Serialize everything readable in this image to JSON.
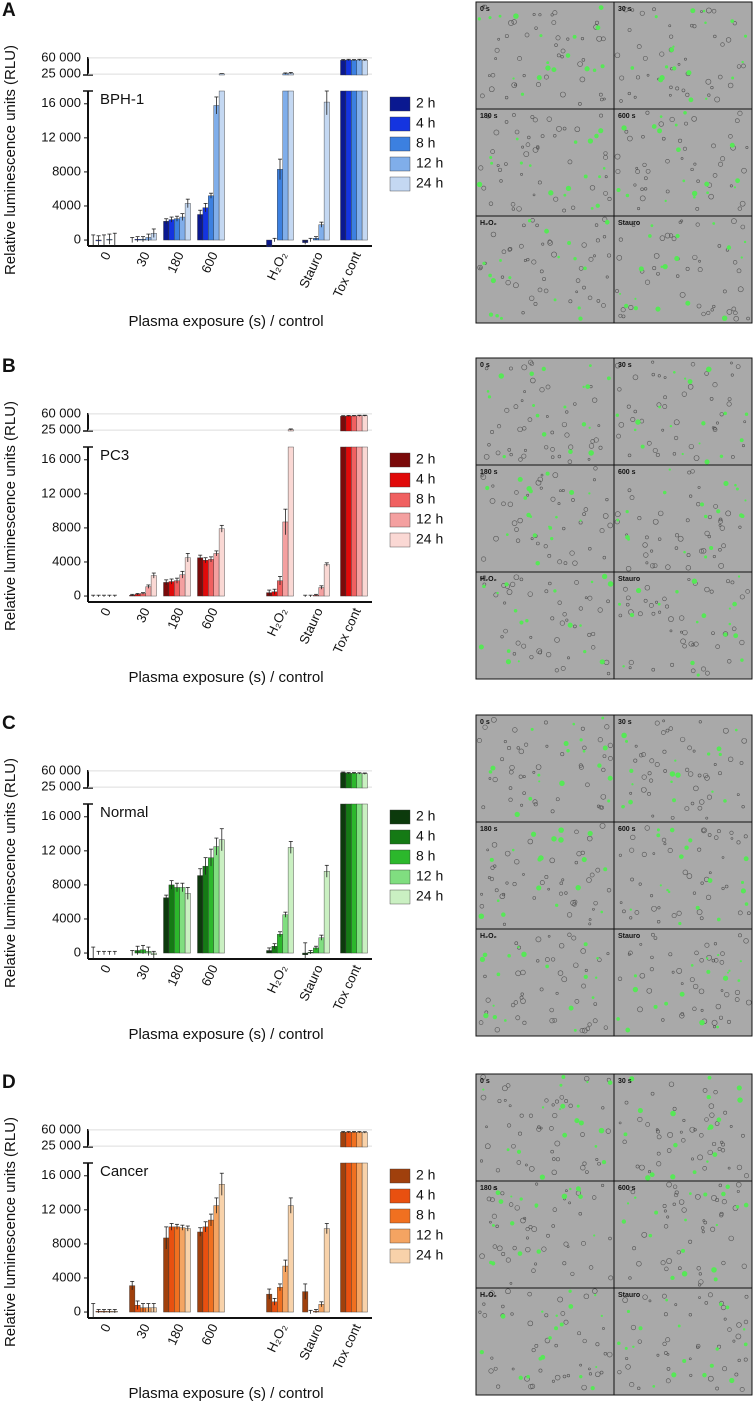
{
  "chart_data": [
    {
      "type": "bar",
      "panel": "A",
      "label": "BPH-1",
      "label_color": "#1a22d8",
      "ylabel": "Relative luminescence units (RLU)",
      "xlabel": "Plasma exposure (s) / control",
      "categories": [
        "0",
        "30",
        "180",
        "600",
        "H₂O₂",
        "Stauro",
        "Tox cont"
      ],
      "ylim": [
        -700,
        17500
      ],
      "yticks": [
        0,
        4000,
        8000,
        {
          "value": 12000,
          "label": "12 000"
        },
        {
          "value": 16000,
          "label": "16 000"
        }
      ],
      "y_break": {
        "ylim": [
          23000,
          62000
        ],
        "yticks": [
          {
            "value": 25000,
            "label": "25 000"
          },
          {
            "value": 60000,
            "label": "60 000"
          }
        ]
      },
      "series": [
        {
          "name": "2 h",
          "color": "#0a1890",
          "values": [
            0,
            0,
            2200,
            3000,
            -800,
            -300,
            55000
          ],
          "errors": [
            600,
            300,
            300,
            500,
            200,
            200,
            1500
          ]
        },
        {
          "name": "4 h",
          "color": "#1434e0",
          "values": [
            -100,
            100,
            2400,
            3800,
            0,
            0,
            55500
          ],
          "errors": [
            600,
            300,
            300,
            500,
            200,
            200,
            1500
          ]
        },
        {
          "name": "8 h",
          "color": "#3c80e0",
          "values": [
            0,
            100,
            2500,
            5200,
            8300,
            200,
            55000
          ],
          "errors": [
            600,
            300,
            300,
            300,
            1200,
            200,
            1500
          ]
        },
        {
          "name": "12 h",
          "color": "#80aeea",
          "values": [
            100,
            300,
            2700,
            15800,
            26000,
            1800,
            55500
          ],
          "errors": [
            600,
            400,
            400,
            1000,
            1500,
            300,
            1500
          ]
        },
        {
          "name": "24 h",
          "color": "#c4d8f2",
          "values": [
            0,
            800,
            4300,
            25500,
            27000,
            16200,
            55000
          ],
          "errors": [
            800,
            500,
            500,
            500,
            1500,
            1500,
            1500
          ]
        }
      ],
      "images": [
        "0 s",
        "30 s",
        "180 s",
        "600 s",
        "H₂O₂",
        "Stauro"
      ]
    },
    {
      "type": "bar",
      "panel": "B",
      "label": "PC3",
      "label_color": "#e01010",
      "ylabel": "Relative luminescence units (RLU)",
      "xlabel": "Plasma exposure (s) / control",
      "categories": [
        "0",
        "30",
        "180",
        "600",
        "H₂O₂",
        "Stauro",
        "Tox cont"
      ],
      "ylim": [
        -700,
        17500
      ],
      "yticks": [
        0,
        4000,
        8000,
        {
          "value": 12000,
          "label": "12 000"
        },
        {
          "value": 16000,
          "label": "16 000"
        }
      ],
      "y_break": {
        "ylim": [
          23000,
          62000
        ],
        "yticks": [
          {
            "value": 25000,
            "label": "25 000"
          },
          {
            "value": 60000,
            "label": "60 000"
          }
        ]
      },
      "series": [
        {
          "name": "2 h",
          "color": "#7a0a0a",
          "values": [
            0,
            100,
            1600,
            4500,
            400,
            0,
            55000
          ],
          "errors": [
            100,
            100,
            300,
            300,
            300,
            100,
            1200
          ]
        },
        {
          "name": "4 h",
          "color": "#e00a0a",
          "values": [
            0,
            200,
            1700,
            4200,
            500,
            0,
            55500
          ],
          "errors": [
            100,
            100,
            300,
            300,
            300,
            100,
            1200
          ]
        },
        {
          "name": "8 h",
          "color": "#f06060",
          "values": [
            0,
            300,
            1800,
            4300,
            1800,
            100,
            55500
          ],
          "errors": [
            100,
            100,
            300,
            300,
            500,
            100,
            1200
          ]
        },
        {
          "name": "12 h",
          "color": "#f4a0a0",
          "values": [
            0,
            1100,
            2500,
            5000,
            8700,
            1000,
            56000
          ],
          "errors": [
            100,
            200,
            400,
            300,
            1500,
            200,
            1200
          ]
        },
        {
          "name": "24 h",
          "color": "#fad8d4",
          "values": [
            0,
            2400,
            4500,
            7900,
            26000,
            3700,
            56000
          ],
          "errors": [
            100,
            300,
            500,
            400,
            1500,
            200,
            1200
          ]
        }
      ],
      "images": [
        "0 s",
        "30 s",
        "180 s",
        "600 s",
        "H₂O₂",
        "Stauro"
      ]
    },
    {
      "type": "bar",
      "panel": "C",
      "label": "Normal",
      "label_color": "#1a8a1a",
      "ylabel": "Relative luminescence units (RLU)",
      "xlabel": "Plasma exposure (s) / control",
      "categories": [
        "0",
        "30",
        "180",
        "600",
        "H₂O₂",
        "Stauro",
        "Tox cont"
      ],
      "ylim": [
        -700,
        17500
      ],
      "yticks": [
        0,
        4000,
        8000,
        {
          "value": 12000,
          "label": "12 000"
        },
        {
          "value": 16000,
          "label": "16 000"
        }
      ],
      "y_break": {
        "ylim": [
          23000,
          62000
        ],
        "yticks": [
          {
            "value": 25000,
            "label": "25 000"
          },
          {
            "value": 60000,
            "label": "60 000"
          }
        ]
      },
      "series": [
        {
          "name": "2 h",
          "color": "#0c3a0c",
          "values": [
            0,
            0,
            6500,
            9100,
            300,
            -200,
            56000
          ],
          "errors": [
            700,
            300,
            300,
            800,
            300,
            1400,
            1500
          ]
        },
        {
          "name": "4 h",
          "color": "#157a15",
          "values": [
            0,
            300,
            8000,
            10200,
            800,
            100,
            55000
          ],
          "errors": [
            200,
            500,
            500,
            1000,
            300,
            200,
            1500
          ]
        },
        {
          "name": "8 h",
          "color": "#2cb82c",
          "values": [
            0,
            400,
            7700,
            11200,
            2200,
            600,
            55000
          ],
          "errors": [
            200,
            500,
            500,
            1000,
            300,
            200,
            1500
          ]
        },
        {
          "name": "12 h",
          "color": "#80de80",
          "values": [
            0,
            200,
            7700,
            12500,
            4500,
            1800,
            54500
          ],
          "errors": [
            200,
            500,
            500,
            1000,
            300,
            300,
            1500
          ]
        },
        {
          "name": "24 h",
          "color": "#caf0c2",
          "values": [
            0,
            -200,
            7000,
            13300,
            12400,
            9600,
            54000
          ],
          "errors": [
            200,
            400,
            700,
            1300,
            700,
            700,
            1500
          ]
        }
      ],
      "images": [
        "0 s",
        "30 s",
        "180 s",
        "600 s",
        "H₂O₂",
        "Stauro"
      ]
    },
    {
      "type": "bar",
      "panel": "D",
      "label": "Cancer",
      "label_color": "#e85a10",
      "ylabel": "Relative luminescence units (RLU)",
      "xlabel": "Plasma exposure (s) / control",
      "categories": [
        "0",
        "30",
        "180",
        "600",
        "H₂O₂",
        "Stauro",
        "Tox cont"
      ],
      "ylim": [
        -700,
        17500
      ],
      "yticks": [
        0,
        4000,
        8000,
        {
          "value": 12000,
          "label": "12 000"
        },
        {
          "value": 16000,
          "label": "16 000"
        }
      ],
      "y_break": {
        "ylim": [
          23000,
          62000
        ],
        "yticks": [
          {
            "value": 25000,
            "label": "25 000"
          },
          {
            "value": 60000,
            "label": "60 000"
          }
        ]
      },
      "series": [
        {
          "name": "2 h",
          "color": "#a0400c",
          "values": [
            0,
            3100,
            8700,
            9400,
            2100,
            2400,
            55000
          ],
          "errors": [
            1000,
            500,
            1300,
            500,
            600,
            900,
            1500
          ]
        },
        {
          "name": "4 h",
          "color": "#e85010",
          "values": [
            100,
            800,
            10000,
            10000,
            1200,
            0,
            55000
          ],
          "errors": [
            200,
            500,
            400,
            600,
            400,
            200,
            1500
          ]
        },
        {
          "name": "8 h",
          "color": "#f07020",
          "values": [
            100,
            500,
            10000,
            10800,
            2900,
            100,
            55000
          ],
          "errors": [
            200,
            500,
            300,
            700,
            400,
            200,
            1500
          ]
        },
        {
          "name": "12 h",
          "color": "#f4a462",
          "values": [
            100,
            500,
            9900,
            12500,
            5400,
            900,
            55000
          ],
          "errors": [
            200,
            500,
            300,
            900,
            700,
            300,
            1500
          ]
        },
        {
          "name": "24 h",
          "color": "#f8d2aa",
          "values": [
            100,
            500,
            9800,
            15000,
            12500,
            9800,
            54500
          ],
          "errors": [
            200,
            500,
            300,
            1300,
            900,
            600,
            1500
          ]
        }
      ],
      "images": [
        "0 s",
        "30 s",
        "180 s",
        "600 s",
        "H₂O₂",
        "Stauro"
      ]
    }
  ]
}
